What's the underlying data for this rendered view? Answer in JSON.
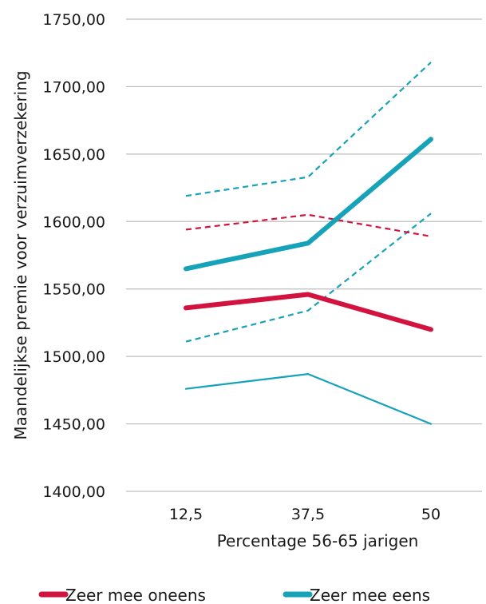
{
  "chart_data": {
    "type": "line",
    "categories": [
      "12,5",
      "37,5",
      "50"
    ],
    "xlabel": "Percentage 56-65 jarigen",
    "ylabel": "Maandelijkse premie voor verzuimverzekering",
    "ylim": [
      1400,
      1750
    ],
    "yticks": [
      "1400,00",
      "1450,00",
      "1500,00",
      "1550,00",
      "1600,00",
      "1650,00",
      "1700,00",
      "1750,00"
    ],
    "grid": "horizontal",
    "legend_position": "bottom",
    "colors": {
      "oneens": "#d3133f",
      "eens": "#16a2b9"
    },
    "series": [
      {
        "name": "Zeer mee oneens",
        "color": "#d3133f",
        "style": "solid-thick",
        "legend": true,
        "values": [
          1536,
          1546,
          1520
        ]
      },
      {
        "color": "#d3133f",
        "style": "dashed",
        "values": [
          1594,
          1605,
          1589
        ]
      },
      {
        "name": "Zeer mee eens",
        "color": "#16a2b9",
        "style": "solid-thick",
        "legend": true,
        "values": [
          1565,
          1584,
          1661
        ]
      },
      {
        "color": "#16a2b9",
        "style": "dashed",
        "values": [
          1619,
          1633,
          1718
        ]
      },
      {
        "color": "#16a2b9",
        "style": "dashed",
        "values": [
          1511,
          1534,
          1606
        ]
      },
      {
        "color": "#16a2b9",
        "style": "solid-thin",
        "values": [
          1476,
          1487,
          1450
        ]
      }
    ]
  }
}
